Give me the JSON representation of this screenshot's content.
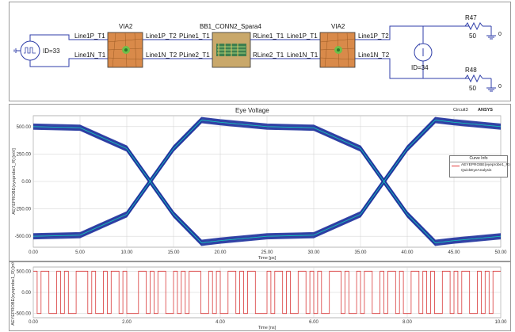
{
  "schematic": {
    "source_left": "ID=33",
    "source_right": "ID=34",
    "via1": {
      "title": "VIA2",
      "pin_in_p": "Line1P_T1",
      "pin_in_n": "Line1N_T1",
      "pin_out_p": "Line1P_T2",
      "pin_out_n": "Line1N_T2"
    },
    "conn": {
      "title": "BB1_CONN2_Spara4",
      "pin_in_p": "PLine1_T1",
      "pin_in_n": "PLine2_T1",
      "pin_out_p": "RLine1_T1",
      "pin_out_n": "RLine2_T1"
    },
    "via2": {
      "title": "VIA2",
      "pin_in_p": "Line1P_T1",
      "pin_in_n": "Line1N_T1",
      "pin_out_p": "Line1P_T2",
      "pin_out_n": "Line1N_T2"
    },
    "r1": {
      "name": "R47",
      "value": "50",
      "ground": "0"
    },
    "r2": {
      "name": "R48",
      "value": "50",
      "ground": "0"
    },
    "colors": {
      "wire": "#2f3ea8",
      "via_fill": "#d98a4a",
      "conn_fill": "#c9a86a"
    }
  },
  "eye": {
    "title": "Eye Voltage",
    "corner": "Circuit3",
    "brand": "ANSYS",
    "xlabel": "Time [ps]",
    "ylabel": "AEYEPROBE(eyeprobe1_R) [mV]",
    "legend_title": "Curve Info",
    "legend_name": "AEYEPROBE(eyeprobe1_R)",
    "legend_sub": "QuickEyeAnalysis"
  },
  "wave": {
    "xlabel": "Time [ns]",
    "ylabel": "AEYEPROBE(eyeprobe1_R) [mV]"
  },
  "chart_data": [
    {
      "type": "line",
      "title": "Eye Voltage",
      "xlabel": "Time [ps]",
      "ylabel": "AEYEPROBE(eyeprobe1_R) [mV]",
      "x_ticks": [
        "0.00",
        "5.00",
        "10.00",
        "15.00",
        "20.00",
        "25.00",
        "30.00",
        "35.00",
        "40.00",
        "45.00",
        "50.00"
      ],
      "y_ticks": [
        "500.00",
        "250.00",
        "0.00",
        "-250.00",
        "-500.00"
      ],
      "xlim": [
        0,
        50
      ],
      "ylim": [
        -600,
        600
      ],
      "grid": true,
      "legend": "right",
      "series": [
        {
          "name": "AEYEPROBE(eyeprobe1_R)",
          "x": [
            0,
            5,
            10,
            12.5,
            15,
            18,
            20,
            25,
            30,
            35,
            37.5,
            40,
            43,
            45,
            50
          ],
          "values": [
            500,
            490,
            300,
            0,
            -300,
            -560,
            -540,
            -500,
            -490,
            -300,
            0,
            300,
            560,
            540,
            500
          ]
        }
      ],
      "colors": {
        "eye": "#1c2f9c",
        "trace": "#18c0b8"
      }
    },
    {
      "type": "line",
      "xlabel": "Time [ns]",
      "ylabel": "AEYEPROBE(eyeprobe1_R) [mV]",
      "x_ticks": [
        "0.00",
        "2.00",
        "4.00",
        "6.00",
        "8.00",
        "10.00"
      ],
      "y_ticks": [
        "500.00",
        "0.00",
        "-500.00"
      ],
      "xlim": [
        0,
        10
      ],
      "ylim": [
        -600,
        600
      ],
      "grid": true,
      "bits": [
        1,
        0,
        1,
        1,
        0,
        0,
        1,
        0,
        1,
        0,
        0,
        1,
        1,
        1,
        0,
        1,
        0,
        0,
        1,
        0,
        1,
        1,
        0,
        1,
        0,
        0,
        0,
        1,
        1,
        0,
        1,
        0,
        1,
        1,
        0,
        0,
        1,
        0,
        1,
        0,
        1,
        1,
        1,
        0,
        0,
        1,
        0,
        1,
        0,
        0,
        1,
        1,
        0,
        1,
        0,
        1,
        1,
        0,
        0,
        0,
        1,
        0,
        1,
        1,
        0,
        1,
        0,
        0,
        1,
        1,
        0,
        1,
        0,
        1,
        0,
        0,
        1,
        1,
        1,
        0,
        1,
        0,
        0,
        1,
        0,
        1,
        1,
        0,
        0,
        1,
        0,
        1,
        1,
        0,
        1,
        0,
        0,
        1,
        1,
        0,
        1,
        0,
        1,
        0,
        0,
        1,
        1,
        0,
        1,
        0,
        1,
        1,
        0,
        0,
        1,
        0,
        1,
        0,
        1,
        1
      ],
      "colors": {
        "trace": "#d93a3a"
      }
    }
  ]
}
